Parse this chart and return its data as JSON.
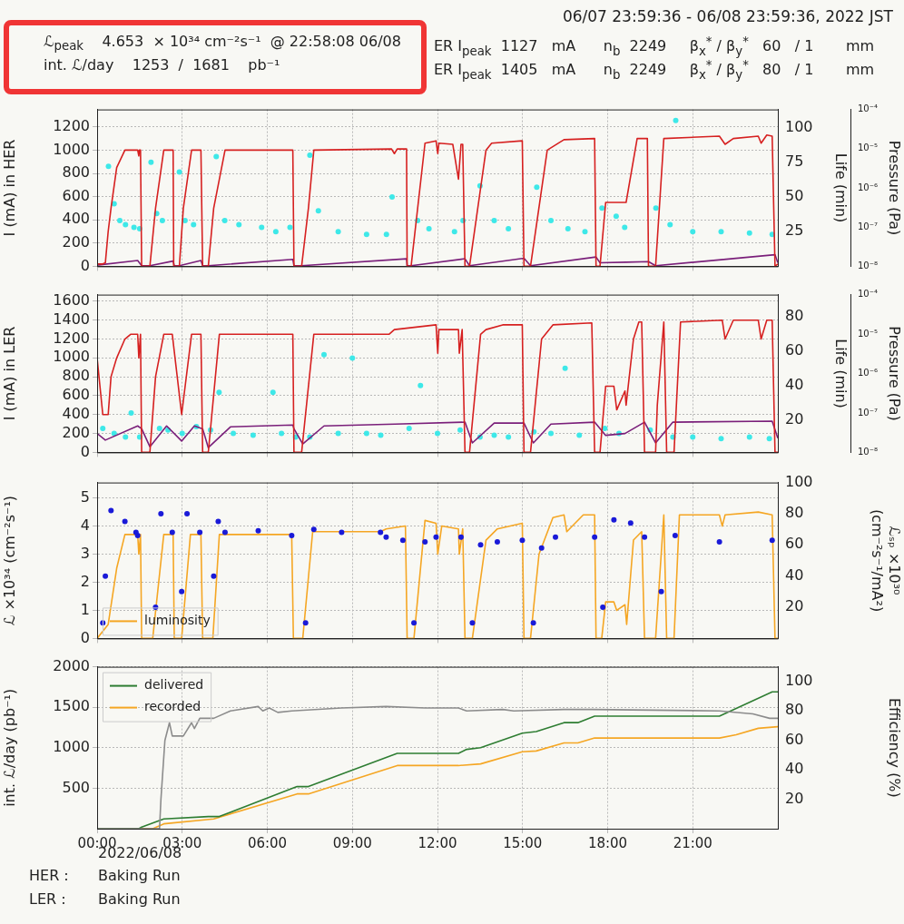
{
  "chart_data": [
    {
      "type": "line",
      "title": "06/07 23:59:36 - 06/08 23:59:36, 2022 JST",
      "annotations": [
        "ℒ$_{peak}$    4.653  × 10³⁴ cm⁻²s⁻¹  @ 22:58:08 06/08",
        "int. ℒ/day    1253  /  1681    pb⁻¹",
        "ER I$_{peak}$  1127   mA      n$_{b}$  2249     β$_{x}$$^{*}$ / β$_{y}$$^{*}$   60   / 1       mm",
        "ER I$_{peak}$  1405   mA      n$_{b}$  2249     β$_{x}$$^{*}$ / β$_{y}$$^{*}$   80   / 1       mm"
      ],
      "ylabel": "I (mA) in HER",
      "y2label": "Life (min)",
      "y3label": "Pressure (Pa)",
      "xlim": [
        0,
        24
      ],
      "xticks": [
        0,
        3,
        6,
        9,
        12,
        15,
        18,
        21
      ],
      "ylim": [
        0,
        1350
      ],
      "yticks": [
        0,
        200,
        400,
        600,
        800,
        1000,
        1200
      ],
      "y2lim": [
        0,
        113
      ],
      "y2ticks": [
        25,
        50,
        75,
        100
      ],
      "y3lim": [
        1e-08,
        0.0001
      ],
      "y3ticks": [
        {
          "value": 1e-08,
          "label": "10⁻⁸"
        },
        {
          "value": 1e-07,
          "label": "10⁻⁷"
        },
        {
          "value": 1e-06,
          "label": "10⁻⁶"
        },
        {
          "value": 1e-05,
          "label": "10⁻⁵"
        },
        {
          "value": 0.0001,
          "label": "10⁻⁴"
        }
      ],
      "log": "y3",
      "grid": true,
      "tick_labels": "y",
      "series": [
        {
          "type": "line",
          "color": "#d62020",
          "x": [
            0,
            0.2,
            0.29,
            0.39,
            0.49,
            0.69,
            0.98,
            1.43,
            1.47,
            1.49,
            1.53,
            1.57,
            1.86,
            2.06,
            2.35,
            2.68,
            2.7,
            2.9,
            3.04,
            3.33,
            3.66,
            3.72,
            3.92,
            4.11,
            4.51,
            6.9,
            6.94,
            7.21,
            7.45,
            7.64,
            10.38,
            10.48,
            10.58,
            10.91,
            10.93,
            11.07,
            11.56,
            11.95,
            12.01,
            12.05,
            12.54,
            12.74,
            12.83,
            12.89,
            12.97,
            13.13,
            13.71,
            13.91,
            14.99,
            15.05,
            15.28,
            15.87,
            16.46,
            17.54,
            17.59,
            17.73,
            17.93,
            18.65,
            19.04,
            19.4,
            19.44,
            19.69,
            19.98,
            21.94,
            22.14,
            22.43,
            23.31,
            23.41,
            23.61,
            23.8,
            23.9,
            24.0
          ],
          "values": [
            20,
            20,
            30,
            300,
            500,
            850,
            1000,
            1000,
            950,
            1000,
            1000,
            0,
            0,
            500,
            1000,
            1000,
            0,
            0,
            500,
            1000,
            1000,
            0,
            0,
            500,
            1000,
            1000,
            0,
            0,
            500,
            1000,
            1010,
            970,
            1010,
            1010,
            0,
            0,
            1060,
            1080,
            970,
            1060,
            1050,
            750,
            1050,
            1050,
            0,
            0,
            1000,
            1060,
            1080,
            0,
            0,
            1000,
            1090,
            1100,
            0,
            0,
            550,
            550,
            1100,
            1100,
            0,
            0,
            1100,
            1120,
            1050,
            1100,
            1120,
            1060,
            1130,
            1120,
            0,
            20
          ]
        },
        {
          "type": "line",
          "color": "#7a1f7a",
          "x": [
            0,
            1.43,
            1.57,
            1.86,
            2.68,
            2.72,
            2.9,
            3.66,
            3.72,
            3.92,
            6.9,
            6.94,
            7.21,
            10.91,
            10.93,
            11.07,
            12.97,
            13.13,
            15.05,
            15.28,
            17.59,
            17.73,
            18.65,
            19.44,
            19.69,
            23.9,
            24.0
          ],
          "values": [
            10,
            50,
            5,
            5,
            45,
            5,
            5,
            50,
            5,
            5,
            60,
            5,
            5,
            65,
            5,
            5,
            65,
            5,
            70,
            5,
            80,
            30,
            35,
            40,
            5,
            100,
            30
          ]
        },
        {
          "type": "scatter",
          "axis": "y2",
          "marker": "circle",
          "color": "#3ee8e8",
          "x": [
            0.4,
            0.6,
            0.8,
            1.0,
            1.3,
            1.5,
            1.9,
            2.1,
            2.3,
            2.9,
            3.1,
            3.4,
            4.2,
            4.5,
            5.0,
            5.8,
            6.3,
            6.8,
            7.5,
            7.8,
            8.5,
            9.5,
            10.2,
            10.4,
            11.3,
            11.7,
            12.6,
            12.9,
            13.5,
            14.0,
            14.5,
            15.5,
            16.0,
            16.6,
            17.2,
            17.8,
            18.3,
            18.6,
            19.7,
            20.2,
            20.4,
            21.0,
            22.0,
            23.0,
            23.8
          ],
          "values": [
            72,
            45,
            33,
            30,
            28,
            27,
            75,
            38,
            33,
            68,
            33,
            30,
            79,
            33,
            30,
            28,
            25,
            28,
            80,
            40,
            25,
            23,
            23,
            50,
            33,
            27,
            25,
            33,
            58,
            33,
            27,
            57,
            33,
            27,
            25,
            42,
            36,
            28,
            42,
            30,
            105,
            25,
            25,
            24,
            23
          ]
        }
      ]
    },
    {
      "type": "line",
      "ylabel": "I (mA) in LER",
      "y2label": "Life (min)",
      "y3label": "Pressure (Pa)",
      "xlim": [
        0,
        24
      ],
      "xticks": [
        0,
        3,
        6,
        9,
        12,
        15,
        18,
        21
      ],
      "ylim": [
        0,
        1670
      ],
      "yticks": [
        0,
        200,
        400,
        600,
        800,
        1000,
        1200,
        1400,
        1600
      ],
      "y2lim": [
        1,
        93
      ],
      "y2ticks": [
        20,
        40,
        60,
        80
      ],
      "y3lim": [
        1e-08,
        0.0001
      ],
      "y3ticks": [
        {
          "value": 1e-08,
          "label": "10⁻⁸"
        },
        {
          "value": 1e-07,
          "label": "10⁻⁷"
        },
        {
          "value": 1e-06,
          "label": "10⁻⁶"
        },
        {
          "value": 1e-05,
          "label": "10⁻⁵"
        },
        {
          "value": 0.0001,
          "label": "10⁻⁴"
        }
      ],
      "log": "y3",
      "grid": true,
      "tick_labels": "y",
      "series": [
        {
          "type": "line",
          "color": "#d62020",
          "x": [
            0,
            0.2,
            0.39,
            0.49,
            0.69,
            0.98,
            1.18,
            1.43,
            1.47,
            1.53,
            1.57,
            1.86,
            2.06,
            2.35,
            2.65,
            2.98,
            3.33,
            3.66,
            3.72,
            3.92,
            4.31,
            6.9,
            6.94,
            7.21,
            7.64,
            10.29,
            10.48,
            11.95,
            12.01,
            12.05,
            12.74,
            12.77,
            12.87,
            12.97,
            13.13,
            13.52,
            13.71,
            14.3,
            14.99,
            15.05,
            15.28,
            15.67,
            16.07,
            17.44,
            17.54,
            17.73,
            17.93,
            18.22,
            18.32,
            18.61,
            18.65,
            18.91,
            19.1,
            19.2,
            19.3,
            19.69,
            19.75,
            19.98,
            20.08,
            20.34,
            20.57,
            22.04,
            22.14,
            22.43,
            23.31,
            23.41,
            23.61,
            23.8,
            23.9,
            24.0
          ],
          "values": [
            1000,
            400,
            400,
            800,
            1000,
            1200,
            1250,
            1250,
            1000,
            1250,
            0,
            0,
            800,
            1250,
            1250,
            400,
            1250,
            1250,
            0,
            0,
            1250,
            1250,
            0,
            0,
            1250,
            1250,
            1300,
            1350,
            1050,
            1300,
            1300,
            1050,
            1300,
            0,
            0,
            1250,
            1300,
            1350,
            1350,
            0,
            0,
            1200,
            1350,
            1370,
            0,
            0,
            700,
            700,
            450,
            650,
            500,
            1200,
            1380,
            1380,
            0,
            0,
            500,
            1380,
            0,
            0,
            1380,
            1400,
            1200,
            1400,
            1400,
            1200,
            1400,
            1400,
            0,
            0
          ]
        },
        {
          "type": "line",
          "color": "#7a1f7a",
          "x": [
            0,
            0.29,
            1.43,
            1.57,
            1.86,
            2.45,
            2.98,
            3.43,
            3.72,
            3.92,
            4.7,
            6.9,
            6.94,
            7.25,
            8.0,
            10.5,
            12.97,
            13.23,
            14.0,
            15.05,
            15.38,
            16.0,
            17.54,
            17.93,
            18.61,
            19.3,
            19.69,
            20.3,
            23.8,
            24.0
          ],
          "values": [
            200,
            130,
            280,
            250,
            60,
            280,
            120,
            280,
            250,
            50,
            270,
            290,
            250,
            90,
            280,
            300,
            320,
            100,
            310,
            310,
            100,
            300,
            320,
            180,
            200,
            320,
            100,
            320,
            330,
            150
          ]
        },
        {
          "type": "scatter",
          "axis": "y2",
          "marker": "circle",
          "color": "#3ee8e8",
          "x": [
            0.2,
            0.6,
            1.0,
            1.2,
            1.5,
            2.2,
            2.5,
            3.0,
            3.5,
            4.0,
            4.3,
            4.8,
            5.5,
            6.2,
            6.5,
            7.0,
            7.5,
            8.0,
            8.5,
            9.0,
            9.5,
            10.0,
            11.0,
            11.4,
            12.0,
            12.8,
            13.5,
            14.0,
            14.5,
            15.4,
            16.0,
            16.5,
            17.0,
            17.9,
            18.4,
            19.5,
            20.3,
            21.0,
            22.0,
            23.0,
            23.7
          ],
          "values": [
            15,
            12,
            10,
            24,
            10,
            15,
            14,
            12,
            16,
            14,
            36,
            12,
            11,
            36,
            12,
            10,
            10,
            58,
            12,
            56,
            12,
            11,
            15,
            40,
            12,
            14,
            10,
            11,
            10,
            13,
            12,
            50,
            11,
            15,
            12,
            14,
            10,
            10,
            9,
            10,
            9
          ]
        }
      ]
    },
    {
      "type": "line",
      "ylabel": "ℒ ×10³⁴ (cm⁻²s⁻¹)",
      "y2label": "ℒₛₚ ×10³⁰\n(cm⁻²s⁻¹/mA²)",
      "xlim": [
        0,
        24
      ],
      "xticks": [
        0,
        3,
        6,
        9,
        12,
        15,
        18,
        21
      ],
      "ylim": [
        0,
        5.55
      ],
      "yticks": [
        0,
        1,
        2,
        3,
        4,
        5
      ],
      "y2lim": [
        0,
        100
      ],
      "y2ticks": [
        20,
        40,
        60,
        80,
        100
      ],
      "grid": true,
      "tick_labels": "y",
      "legend": "bottom left",
      "series": [
        {
          "type": "scatter",
          "axis": "y2",
          "marker": "circle",
          "color": "#1a1ad8",
          "x": [
            0.2,
            0.29,
            0.49,
            0.98,
            1.37,
            1.43,
            2.06,
            2.25,
            2.65,
            2.98,
            3.17,
            3.62,
            4.11,
            4.27,
            4.51,
            5.68,
            6.86,
            7.35,
            7.64,
            8.62,
            9.99,
            10.19,
            10.78,
            11.17,
            11.56,
            11.95,
            12.83,
            13.23,
            13.52,
            14.11,
            14.99,
            15.38,
            15.67,
            16.16,
            17.54,
            17.83,
            18.22,
            18.81,
            19.3,
            19.89,
            20.38,
            21.94,
            23.8
          ],
          "values": [
            10,
            40,
            82,
            75,
            68,
            66,
            20,
            80,
            68,
            30,
            80,
            68,
            40,
            75,
            68,
            69,
            66,
            10,
            70,
            68,
            68,
            65,
            63,
            10,
            62,
            65,
            65,
            10,
            60,
            62,
            63,
            10,
            58,
            65,
            65,
            20,
            76,
            74,
            65,
            30,
            66,
            62,
            63
          ]
        },
        {
          "type": "line",
          "name": "luminosity",
          "color": "#f5a623",
          "x": [
            0,
            0.39,
            0.69,
            0.98,
            1.43,
            1.47,
            1.53,
            1.57,
            1.96,
            2.35,
            2.68,
            2.72,
            2.98,
            3.29,
            3.66,
            3.72,
            4.08,
            4.31,
            6.86,
            6.92,
            7.25,
            7.6,
            9.99,
            10.19,
            10.87,
            10.93,
            11.17,
            11.56,
            11.95,
            12.01,
            12.15,
            12.74,
            12.77,
            12.89,
            12.97,
            13.23,
            13.71,
            14.11,
            14.99,
            15.05,
            15.28,
            15.58,
            16.07,
            16.46,
            16.56,
            17.14,
            17.54,
            17.59,
            17.79,
            17.93,
            18.22,
            18.32,
            18.61,
            18.67,
            18.91,
            19.2,
            19.3,
            19.69,
            19.98,
            20.08,
            20.34,
            20.53,
            21.94,
            22.04,
            22.14,
            23.31,
            23.8,
            23.9,
            24.0
          ],
          "values": [
            0,
            0.5,
            2.5,
            3.7,
            3.7,
            3.0,
            3.7,
            0,
            0,
            3.7,
            3.7,
            0,
            0,
            3.7,
            3.7,
            0,
            0,
            3.7,
            3.7,
            0,
            0,
            3.8,
            3.8,
            3.9,
            4.0,
            0,
            0,
            4.2,
            4.1,
            3.0,
            4.0,
            3.9,
            3.0,
            3.9,
            0,
            0,
            3.5,
            3.9,
            4.1,
            0,
            0,
            3.0,
            4.3,
            4.4,
            3.8,
            4.4,
            4.4,
            0,
            0,
            1.3,
            1.3,
            1.0,
            1.2,
            0.5,
            3.5,
            3.8,
            0,
            0,
            4.4,
            0,
            0,
            4.4,
            4.4,
            4.0,
            4.4,
            4.5,
            4.4,
            0,
            0
          ]
        }
      ]
    },
    {
      "type": "line",
      "ylabel": "int. ℒ/day (pb⁻¹)",
      "y2label": "Efficiency (%)",
      "annotations": [
        "2022/06/08",
        "HER :",
        "Baking Run",
        "LER :",
        "Baking Run"
      ],
      "xlim": [
        0,
        24
      ],
      "xticks": [
        {
          "value": 0,
          "label": "00:00"
        },
        {
          "value": 3,
          "label": "03:00"
        },
        {
          "value": 6,
          "label": "06:00"
        },
        {
          "value": 9,
          "label": "09:00"
        },
        {
          "value": 12,
          "label": "12:00"
        },
        {
          "value": 15,
          "label": "15:00"
        },
        {
          "value": 18,
          "label": "18:00"
        },
        {
          "value": 21,
          "label": "21:00"
        }
      ],
      "ylim": [
        0,
        2000
      ],
      "yticks": [
        500,
        1000,
        1500,
        2000
      ],
      "y2lim": [
        0,
        110
      ],
      "y2ticks": [
        20,
        40,
        60,
        80,
        100
      ],
      "grid": true,
      "legend": "top left",
      "series": [
        {
          "type": "line",
          "axis": "y2",
          "color": "#8c8c8c",
          "x": [
            0,
            2.2,
            2.25,
            2.39,
            2.55,
            2.65,
            3.04,
            3.33,
            3.43,
            3.62,
            4.11,
            4.7,
            5.68,
            5.84,
            6.07,
            6.37,
            6.86,
            8.62,
            10.19,
            11.56,
            12.74,
            13.03,
            14.3,
            14.69,
            16.46,
            17.44,
            21.94,
            23.12,
            23.71,
            24.0
          ],
          "values": [
            0,
            0,
            20,
            60,
            72,
            63,
            63,
            72,
            68,
            75,
            75,
            80,
            83,
            80,
            82,
            79,
            80,
            82,
            83,
            82,
            82,
            80,
            81,
            80,
            81,
            81,
            80,
            78,
            75,
            75
          ]
        },
        {
          "type": "line",
          "name": "delivered",
          "color": "#2e7d32",
          "x": [
            0,
            1.47,
            1.57,
            2.35,
            3.92,
            4.31,
            7.05,
            7.45,
            10.58,
            12.74,
            13.03,
            13.52,
            14.99,
            15.48,
            16.46,
            16.95,
            17.54,
            21.94,
            23.8,
            24.0
          ],
          "values": [
            0,
            0,
            20,
            120,
            150,
            150,
            520,
            520,
            930,
            930,
            980,
            1000,
            1180,
            1200,
            1310,
            1310,
            1390,
            1390,
            1690,
            1690
          ]
        },
        {
          "type": "line",
          "name": "recorded",
          "color": "#f5a623",
          "x": [
            0,
            1.96,
            2.35,
            4.11,
            7.05,
            7.45,
            10.58,
            12.74,
            13.52,
            14.99,
            15.48,
            16.46,
            16.95,
            17.54,
            21.94,
            22.53,
            23.31,
            24.0
          ],
          "values": [
            0,
            0,
            60,
            120,
            430,
            430,
            780,
            780,
            800,
            950,
            960,
            1060,
            1060,
            1120,
            1120,
            1160,
            1240,
            1260
          ]
        }
      ]
    }
  ]
}
